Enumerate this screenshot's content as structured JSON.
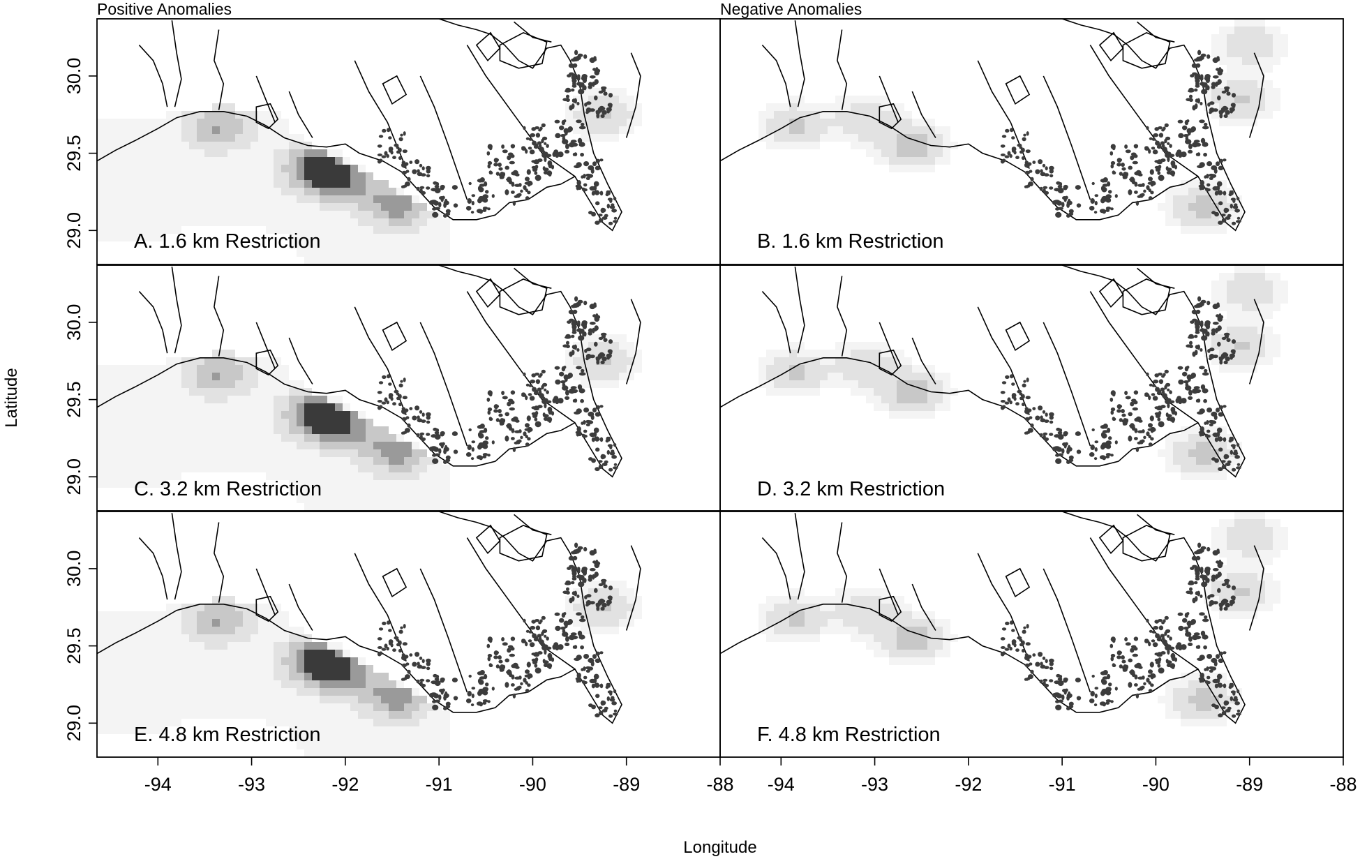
{
  "figure": {
    "column_titles": [
      "Positive Anomalies",
      "Negative Anomalies"
    ],
    "x_axis_title": "Longitude",
    "y_axis_title": "Latitude"
  },
  "panels": [
    {
      "id": "A",
      "label": "A. 1.6 km Restriction",
      "column": 0,
      "row": 0,
      "anomaly": "positive"
    },
    {
      "id": "B",
      "label": "B. 1.6 km Restriction",
      "column": 1,
      "row": 0,
      "anomaly": "negative"
    },
    {
      "id": "C",
      "label": "C. 3.2 km Restriction",
      "column": 0,
      "row": 1,
      "anomaly": "positive"
    },
    {
      "id": "D",
      "label": "D. 3.2 km Restriction",
      "column": 1,
      "row": 1,
      "anomaly": "negative"
    },
    {
      "id": "E",
      "label": "E. 4.8 km Restriction",
      "column": 0,
      "row": 2,
      "anomaly": "positive"
    },
    {
      "id": "F",
      "label": "F. 4.8 km Restriction",
      "column": 1,
      "row": 2,
      "anomaly": "negative"
    }
  ],
  "axes": {
    "x_ticks": {
      "left": [
        "-94",
        "-93",
        "-92",
        "-91",
        "-90",
        "-89",
        "-88"
      ],
      "right": [
        "-94",
        "-93",
        "-92",
        "-91",
        "-90",
        "-89",
        "-88"
      ]
    },
    "y_ticks": [
      "29.0",
      "29.5",
      "30.0"
    ],
    "lon_range": [
      -94.65,
      -88.0
    ],
    "lat_range": [
      28.78,
      30.37
    ]
  },
  "colors": {
    "frame": "#000000",
    "coastline": "#000000",
    "marsh": "#3c3c3c",
    "anomaly_scale": [
      "#f4f4f4",
      "#e2e2e2",
      "#c8c8c8",
      "#9a9a9a",
      "#3a3a3a"
    ]
  },
  "anomaly_regions": {
    "positive": [
      {
        "lon": -93.35,
        "lat": 29.67,
        "strength": 0.5
      },
      {
        "lon": -92.28,
        "lat": 29.4,
        "strength": 1.0
      },
      {
        "lon": -92.0,
        "lat": 29.31,
        "strength": 0.6
      },
      {
        "lon": -91.45,
        "lat": 29.17,
        "strength": 0.65
      },
      {
        "lon": -89.25,
        "lat": 29.75,
        "strength": 0.35
      }
    ],
    "negative": [
      {
        "lon": -93.85,
        "lat": 29.68,
        "strength": 0.35
      },
      {
        "lon": -93.1,
        "lat": 29.72,
        "strength": 0.3
      },
      {
        "lon": -92.6,
        "lat": 29.55,
        "strength": 0.45
      },
      {
        "lon": -89.5,
        "lat": 29.15,
        "strength": 0.4
      },
      {
        "lon": -89.1,
        "lat": 29.85,
        "strength": 0.35
      },
      {
        "lon": -89.0,
        "lat": 30.2,
        "strength": 0.3
      }
    ]
  }
}
